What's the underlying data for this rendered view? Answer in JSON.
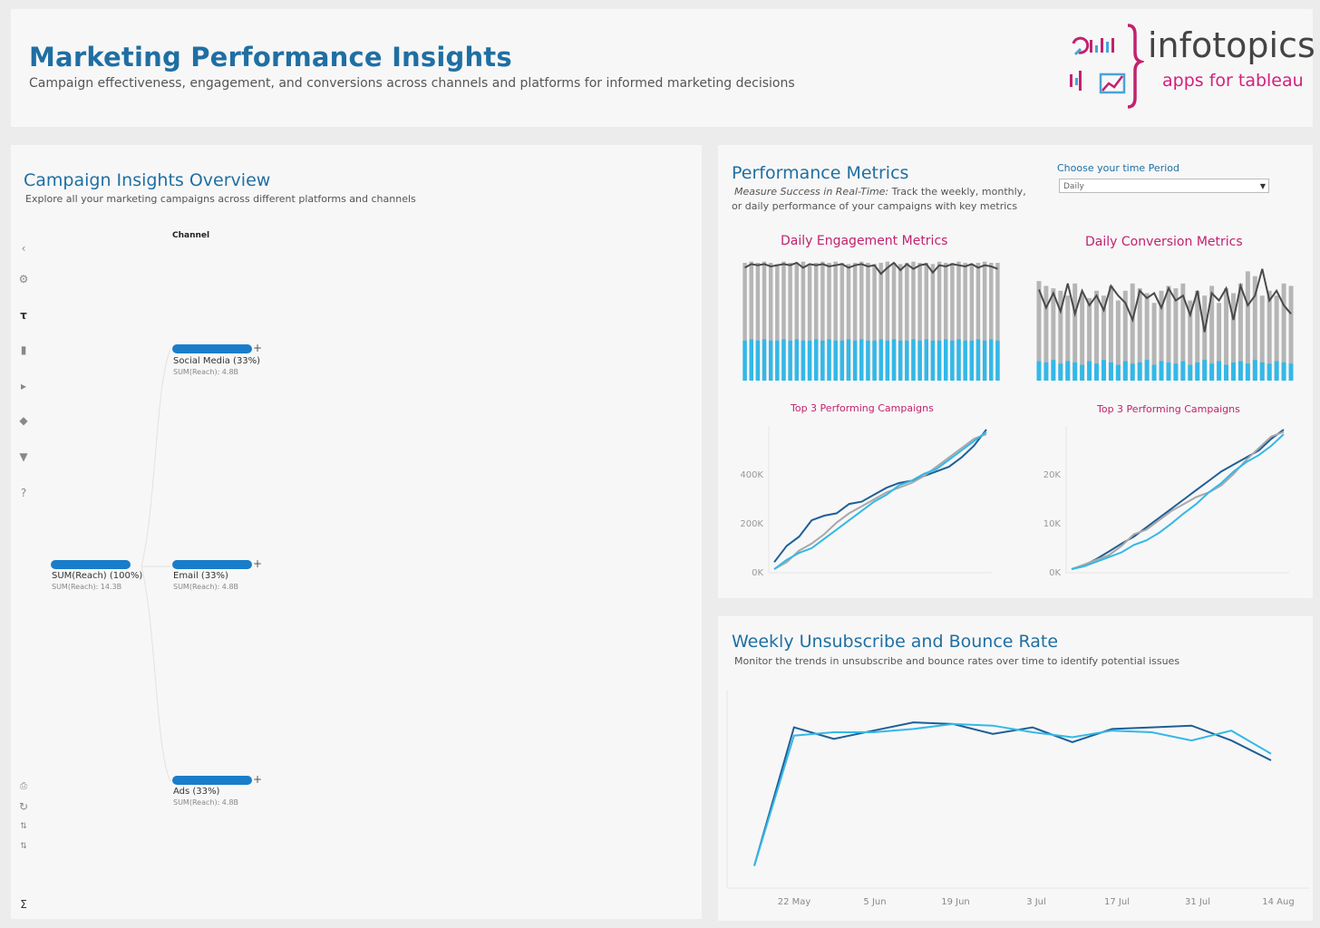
{
  "header": {
    "title": "Marketing Performance Insights",
    "subtitle": "Campaign effectiveness, engagement, and conversions across channels and platforms for informed marketing decisions",
    "logo": {
      "name": "infotopics",
      "tagline": "apps for tableau"
    }
  },
  "campaign_overview": {
    "title": "Campaign Insights Overview",
    "subtitle": "Explore all your marketing campaigns across different platforms and channels",
    "tree": {
      "column_header": "Channel",
      "root": {
        "label": "SUM(Reach) (100%)",
        "value": "SUM(Reach): 14.3B",
        "share": 1.0
      },
      "children": [
        {
          "label": "Social Media (33%)",
          "value": "SUM(Reach): 4.8B",
          "share": 0.33
        },
        {
          "label": "Email (33%)",
          "value": "SUM(Reach): 4.8B",
          "share": 0.33
        },
        {
          "label": "Ads (33%)",
          "value": "SUM(Reach): 4.8B",
          "share": 0.33
        }
      ]
    },
    "toolbar_icons": [
      "chevron-left-icon",
      "gear-icon",
      "paint-roller-icon",
      "tag-icon",
      "play-icon",
      "layers-icon",
      "filter-icon",
      "help-icon",
      "print-icon",
      "refresh-icon",
      "sort-asc-icon",
      "sort-desc-icon",
      "sigma-icon"
    ]
  },
  "performance": {
    "title": "Performance Metrics",
    "desc_italic": "Measure Success in Real-Time:",
    "desc_rest": " Track the weekly, monthly,",
    "desc_line2": "or daily performance of your campaigns with key metrics",
    "period": {
      "label": "Choose your time Period",
      "selected": "Daily"
    },
    "engagement": {
      "title": "Daily Engagement  Metrics",
      "top_title": "Top 3 Performing Campaigns"
    },
    "conversion": {
      "title": "Daily Conversion Metrics",
      "top_title": "Top 3 Performing Campaigns"
    }
  },
  "weekly": {
    "title": "Weekly Unsubscribe and Bounce Rate",
    "subtitle": "Monitor the trends in unsubscribe and bounce rates over time to identify potential issues"
  },
  "colors": {
    "title_blue": "#1f6fa3",
    "accent_pink": "#c2226e",
    "bar_blue": "#1a7dc9",
    "bar_gray": "#b5b5b5",
    "line_dark": "#4a4a4a",
    "series_light": "#33b8e8",
    "series_mid": "#1f5f96",
    "series_gray": "#a8a8a8"
  },
  "chart_data": [
    {
      "type": "bar",
      "id": "daily-engagement",
      "title": "Daily Engagement  Metrics",
      "total": [
        0.97,
        0.98,
        0.97,
        0.98,
        0.97,
        0.96,
        0.98,
        0.97,
        0.97,
        0.98,
        0.96,
        0.97,
        0.98,
        0.97,
        0.98,
        0.97,
        0.96,
        0.97,
        0.98,
        0.97,
        0.96,
        0.97,
        0.98,
        0.97,
        0.96,
        0.97,
        0.98,
        0.97,
        0.97,
        0.96,
        0.98,
        0.97,
        0.97,
        0.98,
        0.97,
        0.96,
        0.97,
        0.98,
        0.97,
        0.97
      ],
      "blue": [
        0.33,
        0.34,
        0.33,
        0.34,
        0.33,
        0.33,
        0.34,
        0.33,
        0.34,
        0.33,
        0.33,
        0.34,
        0.33,
        0.34,
        0.33,
        0.33,
        0.34,
        0.33,
        0.34,
        0.33,
        0.33,
        0.34,
        0.33,
        0.34,
        0.33,
        0.33,
        0.34,
        0.33,
        0.34,
        0.33,
        0.33,
        0.34,
        0.33,
        0.34,
        0.33,
        0.33,
        0.34,
        0.33,
        0.34,
        0.33
      ],
      "line": [
        0.93,
        0.96,
        0.95,
        0.96,
        0.94,
        0.95,
        0.96,
        0.95,
        0.97,
        0.93,
        0.96,
        0.95,
        0.96,
        0.94,
        0.95,
        0.96,
        0.93,
        0.95,
        0.96,
        0.94,
        0.95,
        0.88,
        0.93,
        0.97,
        0.91,
        0.96,
        0.92,
        0.95,
        0.96,
        0.89,
        0.95,
        0.94,
        0.96,
        0.95,
        0.94,
        0.96,
        0.93,
        0.95,
        0.94,
        0.92
      ]
    },
    {
      "type": "bar",
      "id": "daily-conversion",
      "title": "Daily Conversion Metrics",
      "total": [
        0.82,
        0.78,
        0.76,
        0.74,
        0.7,
        0.8,
        0.72,
        0.68,
        0.74,
        0.7,
        0.78,
        0.66,
        0.74,
        0.8,
        0.76,
        0.72,
        0.64,
        0.74,
        0.78,
        0.76,
        0.8,
        0.66,
        0.74,
        0.7,
        0.78,
        0.64,
        0.76,
        0.72,
        0.8,
        0.9,
        0.86,
        0.7,
        0.74,
        0.7,
        0.8,
        0.78
      ],
      "blue": [
        0.16,
        0.15,
        0.17,
        0.14,
        0.16,
        0.15,
        0.13,
        0.16,
        0.14,
        0.17,
        0.15,
        0.13,
        0.16,
        0.14,
        0.15,
        0.17,
        0.13,
        0.16,
        0.15,
        0.14,
        0.16,
        0.13,
        0.15,
        0.17,
        0.14,
        0.16,
        0.13,
        0.15,
        0.16,
        0.14,
        0.17,
        0.15,
        0.14,
        0.16,
        0.15,
        0.14
      ],
      "line": [
        0.75,
        0.6,
        0.72,
        0.57,
        0.8,
        0.55,
        0.74,
        0.62,
        0.7,
        0.58,
        0.78,
        0.7,
        0.64,
        0.5,
        0.74,
        0.68,
        0.72,
        0.6,
        0.76,
        0.66,
        0.7,
        0.54,
        0.74,
        0.4,
        0.72,
        0.66,
        0.76,
        0.5,
        0.78,
        0.62,
        0.7,
        0.92,
        0.66,
        0.74,
        0.62,
        0.55
      ]
    },
    {
      "type": "line",
      "id": "top3-engagement",
      "title": "Top 3 Performing Campaigns",
      "y_ticks": [
        "0K",
        "200K",
        "400K"
      ],
      "ylim": [
        0,
        600000
      ],
      "series": [
        {
          "values": [
            30000,
            100000,
            140000,
            210000,
            230000,
            240000,
            280000,
            290000,
            320000,
            350000,
            370000,
            380000,
            400000,
            420000,
            440000,
            480000,
            530000,
            600000
          ]
        },
        {
          "values": [
            0,
            30000,
            80000,
            110000,
            150000,
            200000,
            240000,
            270000,
            300000,
            330000,
            350000,
            370000,
            400000,
            440000,
            480000,
            520000,
            560000,
            580000
          ]
        },
        {
          "values": [
            0,
            40000,
            70000,
            90000,
            130000,
            170000,
            210000,
            250000,
            290000,
            320000,
            360000,
            380000,
            410000,
            430000,
            470000,
            510000,
            550000,
            590000
          ]
        }
      ]
    },
    {
      "type": "line",
      "id": "top3-conversion",
      "title": "Top 3 Performing Campaigns",
      "y_ticks": [
        "0K",
        "10K",
        "20K"
      ],
      "ylim": [
        0,
        30000
      ],
      "series": [
        {
          "values": [
            0,
            800,
            2200,
            3800,
            5500,
            7000,
            9000,
            11000,
            13000,
            15000,
            17000,
            19000,
            21000,
            22500,
            24000,
            25500,
            28000,
            30000
          ]
        },
        {
          "values": [
            0,
            1000,
            2000,
            3000,
            5000,
            7500,
            8500,
            10500,
            12500,
            14000,
            15500,
            16500,
            18000,
            20500,
            23500,
            26000,
            28500,
            29500
          ]
        },
        {
          "values": [
            0,
            600,
            1600,
            2600,
            3600,
            5200,
            6200,
            7800,
            9800,
            12000,
            14000,
            16500,
            18500,
            21000,
            23000,
            24500,
            26500,
            29000
          ]
        }
      ]
    },
    {
      "type": "line",
      "id": "weekly-unsubscribe-bounce",
      "title": "Weekly Unsubscribe and Bounce Rate",
      "x_ticks": [
        "22 May",
        "5 Jun",
        "19 Jun",
        "3 Jul",
        "17 Jul",
        "31 Jul",
        "14 Aug"
      ],
      "ylim": [
        0,
        1
      ],
      "series": [
        {
          "values": [
            0.08,
            0.92,
            0.85,
            0.9,
            0.95,
            0.94,
            0.88,
            0.92,
            0.83,
            0.91,
            0.92,
            0.93,
            0.84,
            0.72
          ]
        },
        {
          "values": [
            0.08,
            0.87,
            0.89,
            0.89,
            0.91,
            0.94,
            0.93,
            0.89,
            0.86,
            0.9,
            0.89,
            0.84,
            0.9,
            0.76
          ]
        }
      ]
    }
  ]
}
